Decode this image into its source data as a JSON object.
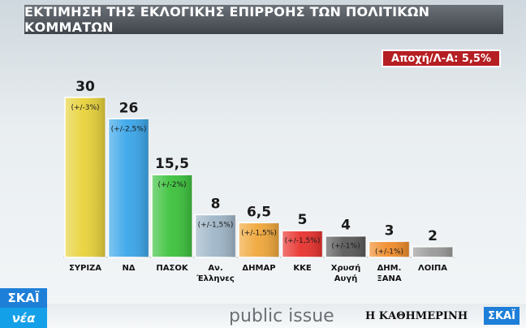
{
  "title": "ΕΚΤΙΜΗΣΗ ΤΗΣ ΕΚΛΟΓΙΚΗΣ ΕΠΙΡΡΟΗΣ ΤΩΝ ΠΟΛΙΤΙΚΩΝ ΚΟΜΜΑΤΩΝ",
  "abstention_label": "Αποχή/Λ-Α: 5,5%",
  "chart_data": {
    "type": "bar",
    "title": "ΕΚΤΙΜΗΣΗ ΤΗΣ ΕΚΛΟΓΙΚΗΣ ΕΠΙΡΡΟΗΣ ΤΩΝ ΠΟΛΙΤΙΚΩΝ ΚΟΜΜΑΤΩΝ",
    "ylim": [
      0,
      30
    ],
    "grid": false,
    "categories": [
      "ΣΥΡΙΖΑ",
      "ΝΔ",
      "ΠΑΣΟΚ",
      "Αν. Έλληνες",
      "ΔΗΜΑΡ",
      "ΚΚΕ",
      "Χρυσή Αυγή",
      "ΔΗΜ. ΞΑΝΑ",
      "ΛΟΙΠΑ"
    ],
    "values": [
      30,
      26,
      15.5,
      8,
      6.5,
      5,
      4,
      3,
      2
    ],
    "value_labels": [
      "30",
      "26",
      "15,5",
      "8",
      "6,5",
      "5",
      "4",
      "3",
      "2"
    ],
    "margins": [
      "(+/-3%)",
      "(+/-2,5%)",
      "(+/-2%)",
      "(+/-1,5%)",
      "(+/-1,5%)",
      "(+/-1,5%)",
      "(+/-1%)",
      "(+/-1%)",
      ""
    ],
    "colors": [
      "#e8d23a",
      "#3aa6ea",
      "#3cc23c",
      "#9fb6c8",
      "#f0a73a",
      "#e8322e",
      "#5a5a5a",
      "#f08c2a",
      "#9a9a9a"
    ]
  },
  "footer": {
    "channel_top": "ΣΚΑΪ",
    "channel_bottom": "νέα",
    "pollster": "public issue",
    "newspaper": "Η ΚΑΘΗΜΕΡΙΝΗ",
    "channel_small": "ΣΚΑΪ"
  }
}
